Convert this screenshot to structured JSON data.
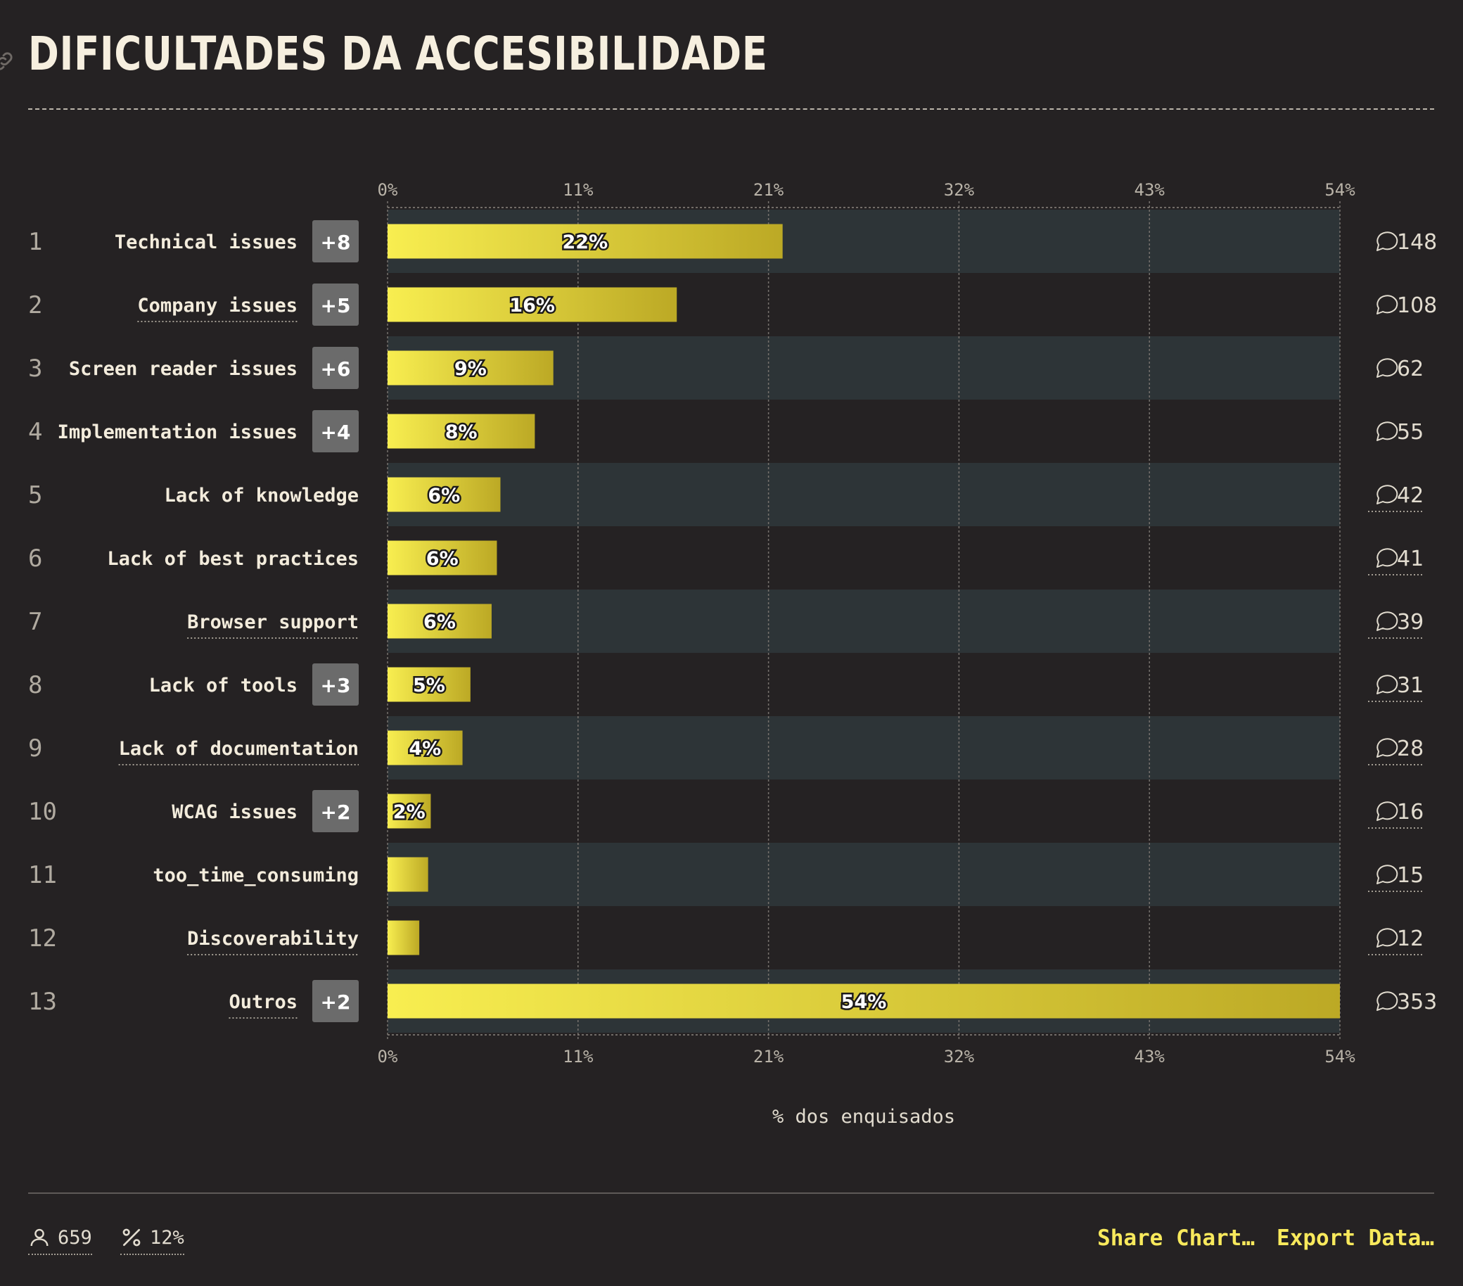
{
  "title": "DIFICULTADES DA ACCESIBILIDADE",
  "chart_data": {
    "type": "bar",
    "orientation": "horizontal",
    "xlabel": "% dos enquisados",
    "xlim": [
      0,
      54
    ],
    "x_ticks": [
      "0%",
      "11%",
      "21%",
      "32%",
      "43%",
      "54%"
    ],
    "grid": true,
    "rows": [
      {
        "rank": "1",
        "label": "Technical issues",
        "badge": "+8",
        "value": 22.4,
        "value_label": "22%",
        "count": "148",
        "underlined": false
      },
      {
        "rank": "2",
        "label": "Company issues",
        "badge": "+5",
        "value": 16.4,
        "value_label": "16%",
        "count": "108",
        "underlined": true
      },
      {
        "rank": "3",
        "label": "Screen reader issues",
        "badge": "+6",
        "value": 9.4,
        "value_label": "9%",
        "count": "62",
        "underlined": false
      },
      {
        "rank": "4",
        "label": "Implementation issues",
        "badge": "+4",
        "value": 8.35,
        "value_label": "8%",
        "count": "55",
        "underlined": false
      },
      {
        "rank": "5",
        "label": "Lack of knowledge",
        "badge": "",
        "value": 6.4,
        "value_label": "6%",
        "count": "42",
        "underlined": false
      },
      {
        "rank": "6",
        "label": "Lack of best practices",
        "badge": "",
        "value": 6.2,
        "value_label": "6%",
        "count": "41",
        "underlined": false
      },
      {
        "rank": "7",
        "label": "Browser support",
        "badge": "",
        "value": 5.9,
        "value_label": "6%",
        "count": "39",
        "underlined": true
      },
      {
        "rank": "8",
        "label": "Lack of tools",
        "badge": "+3",
        "value": 4.7,
        "value_label": "5%",
        "count": "31",
        "underlined": false
      },
      {
        "rank": "9",
        "label": "Lack of documentation",
        "badge": "",
        "value": 4.25,
        "value_label": "4%",
        "count": "28",
        "underlined": true
      },
      {
        "rank": "10",
        "label": "WCAG issues",
        "badge": "+2",
        "value": 2.45,
        "value_label": "2%",
        "count": "16",
        "underlined": false
      },
      {
        "rank": "11",
        "label": "too_time_consuming",
        "badge": "",
        "value": 2.3,
        "value_label": "",
        "count": "15",
        "underlined": false
      },
      {
        "rank": "12",
        "label": "Discoverability",
        "badge": "",
        "value": 1.8,
        "value_label": "",
        "count": "12",
        "underlined": true
      },
      {
        "rank": "13",
        "label": "Outros",
        "badge": "+2",
        "value": 54,
        "value_label": "54%",
        "count": "353",
        "underlined": true
      }
    ]
  },
  "footer": {
    "respondents": "659",
    "percent": "12%",
    "share_label": "Share Chart…",
    "export_label": "Export Data…"
  },
  "colors": {
    "background": "#252223",
    "row_band": "#2d3437",
    "bar_start": "#f8ee50",
    "bar_end": "#bca925",
    "badge": "#6b6b6b",
    "accent": "#f8e95c"
  },
  "icons": {
    "respondents": "user-icon",
    "percent": "percent-icon",
    "comment": "comment-icon",
    "link": "link-icon"
  }
}
